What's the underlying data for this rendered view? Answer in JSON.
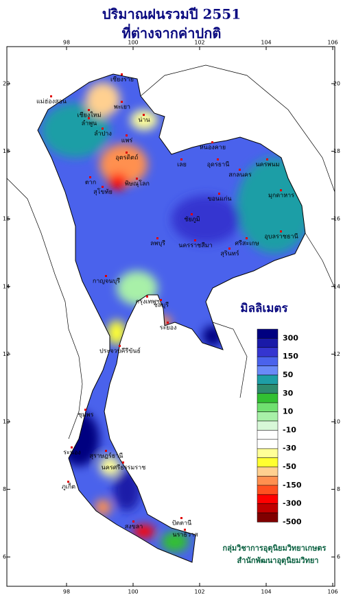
{
  "title": [
    "ปริมาณฝนรวมปี 2551",
    "ที่ต่างจากค่าปกติ"
  ],
  "x_ticks": [
    98,
    100,
    102,
    104,
    106
  ],
  "y_ticks": [
    20,
    18,
    16,
    14,
    12,
    10,
    8,
    6
  ],
  "legend": {
    "title": "มิลลิเมตร",
    "colors": [
      "#000080",
      "#1a1aa8",
      "#3535d0",
      "#4a62ec",
      "#6a8af8",
      "#1e9ea6",
      "#2e8b6e",
      "#32c032",
      "#70e070",
      "#a8f0a8",
      "#d8f8d8",
      "#ffffff",
      "#ffffff",
      "#ffff98",
      "#ffff30",
      "#ffd090",
      "#ff9050",
      "#ff5020",
      "#ff0000",
      "#c00000",
      "#800000"
    ],
    "labels": [
      "300",
      "150",
      "50",
      "30",
      "10",
      "-10",
      "-30",
      "-50",
      "-150",
      "-300",
      "-500"
    ]
  },
  "provinces": [
    "เชียงราย",
    "พะเยา",
    "น่าน",
    "เชียงใหม่",
    "ลำพูน",
    "ลำปาง",
    "แพร่",
    "แม่ฮ่องสอน",
    "ตาก",
    "สุโขทัย",
    "พิษณุโลก",
    "อุตรดิตถ์",
    "เลย",
    "หนองคาย",
    "อุดรธานี",
    "นครพนม",
    "สกลนคร",
    "มุกดาหาร",
    "ขอนแก่น",
    "ชัยภูมิ",
    "นครราชสีมา",
    "อุบลราชธานี",
    "ศรีสะเกษ",
    "สุรินทร์",
    "ลพบุรี",
    "กาญจนบุรี",
    "กรุงเทพฯ",
    "ชลบุรี",
    "ระยอง",
    "ประจวบคีรีขันธ์",
    "ชุมพร",
    "ระนอง",
    "สุราษฎร์ธานี",
    "นครศรีธรรมราช",
    "ภูเก็ต",
    "สงขลา",
    "ปัตตานี",
    "นราธิวาส"
  ],
  "credits": [
    "กลุ่มวิชาการอุตุนิยมวิทยาเกษตร",
    "สำนักพัฒนาอุตุนิยมวิทยา"
  ]
}
